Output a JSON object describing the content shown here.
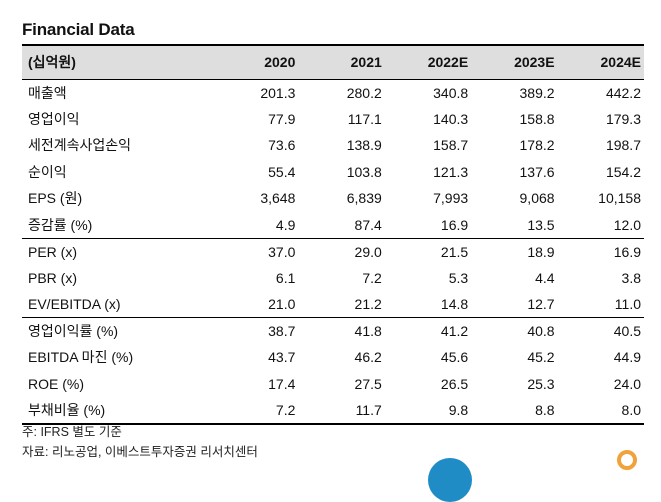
{
  "title": "Financial Data",
  "table": {
    "header": [
      "(십억원)",
      "2020",
      "2021",
      "2022E",
      "2023E",
      "2024E"
    ],
    "rows": [
      {
        "label": "매출액",
        "values": [
          "201.3",
          "280.2",
          "340.8",
          "389.2",
          "442.2"
        ]
      },
      {
        "label": "영업이익",
        "values": [
          "77.9",
          "117.1",
          "140.3",
          "158.8",
          "179.3"
        ]
      },
      {
        "label": "세전계속사업손익",
        "values": [
          "73.6",
          "138.9",
          "158.7",
          "178.2",
          "198.7"
        ]
      },
      {
        "label": "순이익",
        "values": [
          "55.4",
          "103.8",
          "121.3",
          "137.6",
          "154.2"
        ]
      },
      {
        "label": "EPS (원)",
        "values": [
          "3,648",
          "6,839",
          "7,993",
          "9,068",
          "10,158"
        ]
      },
      {
        "label": "증감률 (%)",
        "values": [
          "4.9",
          "87.4",
          "16.9",
          "13.5",
          "12.0"
        ]
      },
      {
        "label": "PER (x)",
        "values": [
          "37.0",
          "29.0",
          "21.5",
          "18.9",
          "16.9"
        ]
      },
      {
        "label": "PBR (x)",
        "values": [
          "6.1",
          "7.2",
          "5.3",
          "4.4",
          "3.8"
        ]
      },
      {
        "label": "EV/EBITDA (x)",
        "values": [
          "21.0",
          "21.2",
          "14.8",
          "12.7",
          "11.0"
        ]
      },
      {
        "label": "영업이익률 (%)",
        "values": [
          "38.7",
          "41.8",
          "41.2",
          "40.8",
          "40.5"
        ]
      },
      {
        "label": "EBITDA 마진 (%)",
        "values": [
          "43.7",
          "46.2",
          "45.6",
          "45.2",
          "44.9"
        ]
      },
      {
        "label": "ROE (%)",
        "values": [
          "17.4",
          "27.5",
          "26.5",
          "25.3",
          "24.0"
        ]
      },
      {
        "label": "부채비율 (%)",
        "values": [
          "7.2",
          "11.7",
          "9.8",
          "8.8",
          "8.0"
        ]
      }
    ]
  },
  "notes": {
    "basis": "주: IFRS 별도 기준",
    "source": "자료: 리노공업, 이베스트투자증권 리서치센터"
  },
  "colors": {
    "header_bg": "#dedede",
    "logo_blue": "#1f8cc6",
    "logo_orange": "#f0a23c"
  }
}
